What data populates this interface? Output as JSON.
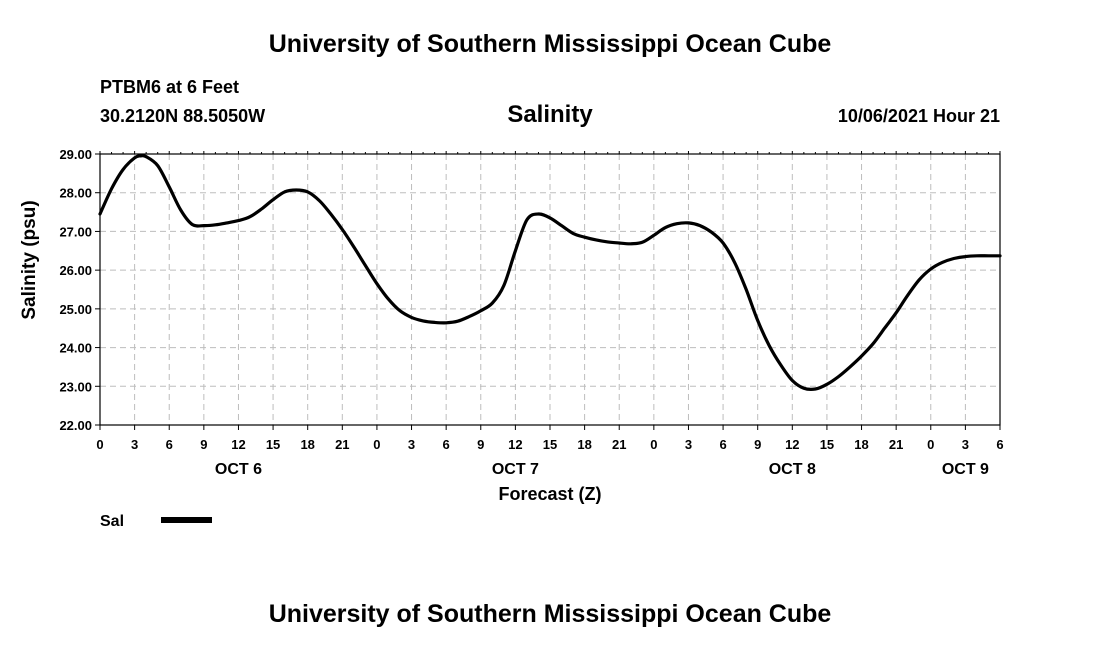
{
  "header": {
    "title": "University of Southern Mississippi Ocean Cube",
    "station": "PTBM6 at 6 Feet",
    "coords": "30.2120N  88.5050W",
    "variable": "Salinity",
    "timestamp": "10/06/2021 Hour 21"
  },
  "footer": {
    "title": "University of Southern Mississippi Ocean Cube"
  },
  "chart_data": {
    "type": "line",
    "title": "Salinity",
    "xlabel": "Forecast (Z)",
    "ylabel": "Salinity (psu)",
    "xlim": [
      0,
      78
    ],
    "ylim": [
      22,
      29
    ],
    "grid": true,
    "y_ticks": [
      "22.00",
      "23.00",
      "24.00",
      "25.00",
      "26.00",
      "27.00",
      "28.00",
      "29.00"
    ],
    "x_tick_labels": [
      "0",
      "3",
      "6",
      "9",
      "12",
      "15",
      "18",
      "21",
      "0",
      "3",
      "6",
      "9",
      "12",
      "15",
      "18",
      "21",
      "0",
      "3",
      "6",
      "9",
      "12",
      "15",
      "18",
      "21",
      "0",
      "3",
      "6"
    ],
    "day_labels": [
      {
        "label": "OCT 6",
        "hour": 12
      },
      {
        "label": "OCT 7",
        "hour": 36
      },
      {
        "label": "OCT 8",
        "hour": 60
      },
      {
        "label": "OCT 9",
        "hour": 75
      }
    ],
    "legend": {
      "label": "Sal",
      "color": "#000000",
      "placement": "bottom-left"
    },
    "series": [
      {
        "name": "Sal",
        "x": [
          0,
          1,
          2,
          3,
          3.5,
          4,
          5,
          6,
          7,
          8,
          9,
          10,
          11,
          12,
          13,
          14,
          15,
          16,
          17,
          18,
          19,
          20,
          21,
          22,
          23,
          24,
          25,
          26,
          27,
          28,
          29,
          30,
          31,
          32,
          33,
          34,
          35,
          36,
          37,
          38,
          39,
          40,
          41,
          42,
          43,
          44,
          45,
          46,
          47,
          48,
          49,
          50,
          51,
          52,
          53,
          54,
          55,
          56,
          57,
          58,
          59,
          60,
          61,
          62,
          63,
          64,
          65,
          66,
          67,
          68,
          69,
          70,
          71,
          72,
          73,
          74,
          75,
          76,
          77,
          78
        ],
        "values": [
          27.45,
          28.1,
          28.6,
          28.9,
          28.95,
          28.93,
          28.7,
          28.15,
          27.55,
          27.18,
          27.15,
          27.17,
          27.22,
          27.28,
          27.38,
          27.58,
          27.82,
          28.02,
          28.07,
          28.02,
          27.8,
          27.45,
          27.05,
          26.6,
          26.12,
          25.65,
          25.25,
          24.95,
          24.78,
          24.69,
          24.65,
          24.64,
          24.68,
          24.8,
          24.95,
          25.15,
          25.6,
          26.5,
          27.3,
          27.45,
          27.35,
          27.15,
          26.95,
          26.85,
          26.78,
          26.73,
          26.7,
          26.68,
          26.72,
          26.9,
          27.1,
          27.2,
          27.22,
          27.15,
          26.98,
          26.7,
          26.2,
          25.5,
          24.7,
          24.05,
          23.55,
          23.15,
          22.95,
          22.93,
          23.05,
          23.25,
          23.5,
          23.78,
          24.1,
          24.5,
          24.9,
          25.35,
          25.75,
          26.03,
          26.2,
          26.3,
          26.35,
          26.37,
          26.37,
          26.37
        ]
      }
    ]
  }
}
